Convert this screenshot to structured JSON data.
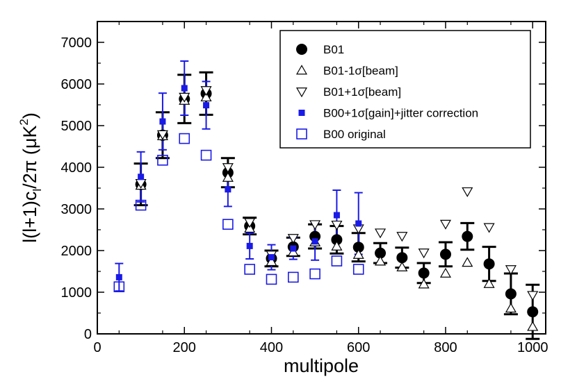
{
  "chart_data": {
    "type": "scatter",
    "title": "",
    "xlabel": "multipole",
    "ylabel": "l(l+1)cₗ/2π (μK²)",
    "ylabel_parts": {
      "main": "l(l+1)c",
      "sub": "l",
      "mid": "/2π (μK",
      "sup": "2",
      "end": ")"
    },
    "xlim": [
      0,
      1030
    ],
    "ylim": [
      0,
      7500
    ],
    "xticks": [
      0,
      200,
      400,
      600,
      800,
      1000
    ],
    "yticks": [
      0,
      1000,
      2000,
      3000,
      4000,
      5000,
      6000,
      7000
    ],
    "legend_position": "top-right",
    "series": [
      {
        "name": "B01",
        "marker": "filled-circle",
        "color": "#000000",
        "x": [
          100,
          150,
          200,
          250,
          300,
          350,
          400,
          450,
          500,
          550,
          600,
          650,
          700,
          750,
          800,
          850,
          900,
          950,
          1000
        ],
        "values": [
          3590,
          4770,
          5640,
          5770,
          3870,
          2590,
          1810,
          2090,
          2340,
          2260,
          2080,
          1940,
          1830,
          1460,
          1910,
          2340,
          1680,
          960,
          530
        ],
        "err": [
          500,
          550,
          580,
          510,
          350,
          200,
          190,
          220,
          290,
          330,
          340,
          240,
          240,
          240,
          290,
          320,
          410,
          490,
          650
        ]
      },
      {
        "name": "B01-1σ[beam]",
        "marker": "triangle-up",
        "color": "#000000",
        "x": [
          100,
          150,
          200,
          250,
          300,
          350,
          400,
          450,
          500,
          550,
          600,
          650,
          700,
          750,
          800,
          850,
          900,
          950,
          1000
        ],
        "values": [
          3560,
          4750,
          5600,
          5680,
          3750,
          2530,
          1730,
          1960,
          2200,
          2100,
          1900,
          1740,
          1600,
          1190,
          1450,
          1710,
          1200,
          610,
          170
        ]
      },
      {
        "name": "B01+1σ[beam]",
        "marker": "triangle-down",
        "color": "#000000",
        "x": [
          100,
          150,
          200,
          250,
          300,
          350,
          400,
          450,
          500,
          550,
          600,
          650,
          700,
          750,
          800,
          850,
          900,
          950,
          1000
        ],
        "values": [
          3620,
          4790,
          5690,
          5850,
          4000,
          2680,
          1900,
          2300,
          2630,
          2620,
          2530,
          2430,
          2350,
          1950,
          2640,
          3420,
          2560,
          1550,
          930
        ]
      },
      {
        "name": "B00+1σ[gain]+jitter correction",
        "marker": "filled-square",
        "color": "#1a1ae6",
        "x": [
          50,
          100,
          150,
          200,
          250,
          300,
          350,
          400,
          450,
          500,
          550,
          600
        ],
        "values": [
          1360,
          3770,
          5100,
          5900,
          5490,
          3470,
          2110,
          1840,
          2050,
          2220,
          2850,
          2650
        ],
        "err": [
          330,
          600,
          680,
          650,
          570,
          410,
          310,
          300,
          260,
          450,
          600,
          740
        ]
      },
      {
        "name": "B00 original",
        "marker": "open-square",
        "color": "#1a1ae6",
        "x": [
          50,
          100,
          150,
          200,
          250,
          300,
          350,
          400,
          450,
          500,
          550,
          600
        ],
        "values": [
          1130,
          3090,
          4170,
          4690,
          4290,
          2630,
          1550,
          1310,
          1360,
          1440,
          1750,
          1550
        ]
      }
    ]
  }
}
